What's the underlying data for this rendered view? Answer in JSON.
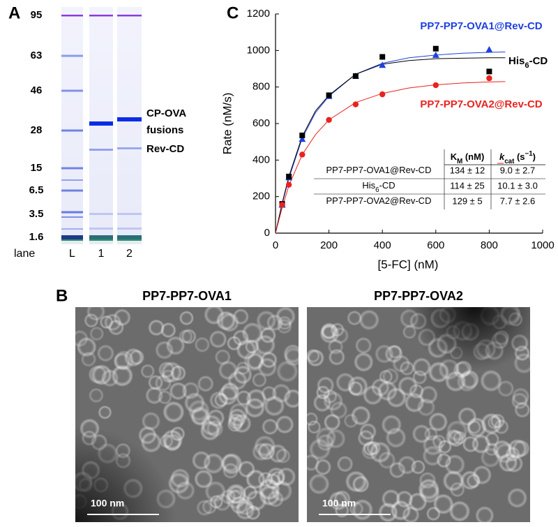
{
  "panel_a": {
    "letter": "A",
    "ladder_labels": [
      "95",
      "63",
      "46",
      "28",
      "15",
      "6.5",
      "3.5",
      "1.6"
    ],
    "lane_title": "lane",
    "lanes": [
      "L",
      "1",
      "2"
    ],
    "band_labels": [
      "CP-OVA",
      "fusions",
      "Rev-CD"
    ]
  },
  "panel_b": {
    "letter": "B",
    "images": [
      {
        "title": "PP7-PP7-OVA1",
        "scale_bar": "100 nm"
      },
      {
        "title": "PP7-PP7-OVA2",
        "scale_bar": "100 nm"
      }
    ]
  },
  "chart_data": {
    "type": "scatter",
    "letter": "C",
    "x_label": "[5-FC] (nM)",
    "y_label": "Rate (nM/s)",
    "x": [
      25,
      50,
      100,
      200,
      300,
      400,
      600,
      800
    ],
    "xlim": [
      0,
      1000
    ],
    "xticks": [
      0,
      200,
      400,
      600,
      800,
      1000
    ],
    "ylim": [
      0,
      1200
    ],
    "yticks": [
      0,
      200,
      400,
      600,
      800,
      1000,
      1200
    ],
    "series": [
      {
        "name": [
          {
            "t": "PP7-PP7-OVA1@Rev-CD"
          }
        ],
        "color": "#1f3fe0",
        "marker": "triangle",
        "values": [
          155,
          305,
          515,
          750,
          860,
          920,
          975,
          1005
        ],
        "fit": {
          "x": [
            0,
            25,
            50,
            100,
            150,
            200,
            300,
            400,
            500,
            600,
            700,
            800,
            860
          ],
          "values": [
            0,
            160,
            300,
            520,
            660,
            750,
            870,
            930,
            960,
            975,
            985,
            990,
            992
          ]
        }
      },
      {
        "name": [
          {
            "t": "His"
          },
          {
            "t": "6",
            "sub": true
          },
          {
            "t": "-CD"
          }
        ],
        "color": "#000000",
        "marker": "square",
        "values": [
          160,
          310,
          535,
          755,
          860,
          965,
          1010,
          885
        ],
        "fit": {
          "x": [
            0,
            25,
            50,
            100,
            150,
            200,
            300,
            400,
            500,
            600,
            700,
            800,
            860
          ],
          "values": [
            0,
            165,
            310,
            530,
            670,
            755,
            870,
            925,
            945,
            955,
            958,
            960,
            960
          ]
        }
      },
      {
        "name": [
          {
            "t": "PP7-PP7-OVA2@Rev-CD"
          }
        ],
        "color": "#e8231f",
        "marker": "circle",
        "values": [
          155,
          265,
          430,
          620,
          705,
          760,
          810,
          848
        ],
        "fit": {
          "x": [
            0,
            25,
            50,
            100,
            150,
            200,
            300,
            400,
            500,
            600,
            700,
            800,
            860
          ],
          "values": [
            0,
            140,
            260,
            430,
            540,
            620,
            715,
            765,
            795,
            812,
            822,
            828,
            830
          ]
        }
      }
    ],
    "table": {
      "columns": [
        [
          {
            "t": "K"
          },
          {
            "t": "M",
            "sub": true
          },
          {
            "t": " (nM)"
          }
        ],
        [
          {
            "t": "k",
            "italic": true
          },
          {
            "t": "cat",
            "sub": true
          },
          {
            "t": " (s"
          },
          {
            "t": "−1",
            "sup": true
          },
          {
            "t": ")"
          }
        ]
      ],
      "rows": [
        {
          "name": [
            {
              "t": "PP7-PP7-OVA1@Rev-CD"
            }
          ],
          "km": "134 ± 12",
          "kcat": "9.0 ± 2.7"
        },
        {
          "name": [
            {
              "t": "His"
            },
            {
              "t": "6",
              "sub": true
            },
            {
              "t": "-CD"
            }
          ],
          "km": "114 ± 25",
          "kcat": "10.1 ± 3.0"
        },
        {
          "name": [
            {
              "t": "PP7-PP7-OVA2@Rev-CD"
            }
          ],
          "km": "129 ± 5",
          "kcat": "7.7 ± 2.6"
        }
      ]
    }
  }
}
